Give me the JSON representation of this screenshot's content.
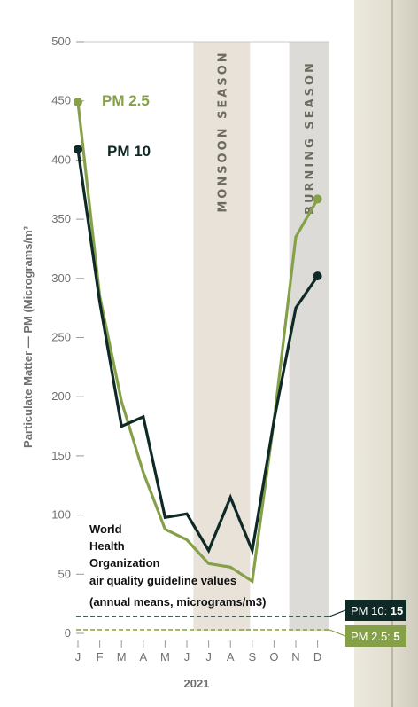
{
  "chart_data": {
    "type": "line",
    "ylabel": "Particulate Matter — PM (Micrograms/m³",
    "xlabel": "2021",
    "categories": [
      "J",
      "F",
      "M",
      "A",
      "M",
      "J",
      "J",
      "A",
      "S",
      "O",
      "N",
      "D"
    ],
    "ylim": [
      0,
      500
    ],
    "yticks": [
      0,
      50,
      100,
      150,
      200,
      250,
      300,
      350,
      400,
      450,
      500
    ],
    "grid": "top line only",
    "series": [
      {
        "name": "PM 2.5",
        "color": "#86a04a",
        "values": [
          449,
          285,
          196,
          136,
          88,
          79,
          59,
          56,
          44,
          180,
          335,
          367
        ]
      },
      {
        "name": "PM 10",
        "color": "#0f2a26",
        "values": [
          409,
          280,
          175,
          183,
          98,
          101,
          70,
          115,
          70,
          180,
          275,
          302
        ]
      }
    ],
    "bands": [
      {
        "label": "MONSOON SEASON",
        "from": 5.3,
        "to": 7.9,
        "color": "#e8e2d9"
      },
      {
        "label": "BURNING SEASON",
        "from": 9.7,
        "to": 11.5,
        "color": "#dcdbd7"
      }
    ],
    "who": {
      "text": [
        "World",
        "Health",
        "Organization",
        "air quality guideline values",
        "(annual means, micrograms/m3)"
      ],
      "lines": [
        {
          "name": "PM 10",
          "prefix": "PM 10: ",
          "value": 15,
          "color": "#0f2a26",
          "dash": "black dashed"
        },
        {
          "name": "PM 2.5",
          "prefix": "PM 2.5: ",
          "value": 5,
          "color": "#86a04a",
          "dash": "olive dashed"
        }
      ]
    }
  }
}
